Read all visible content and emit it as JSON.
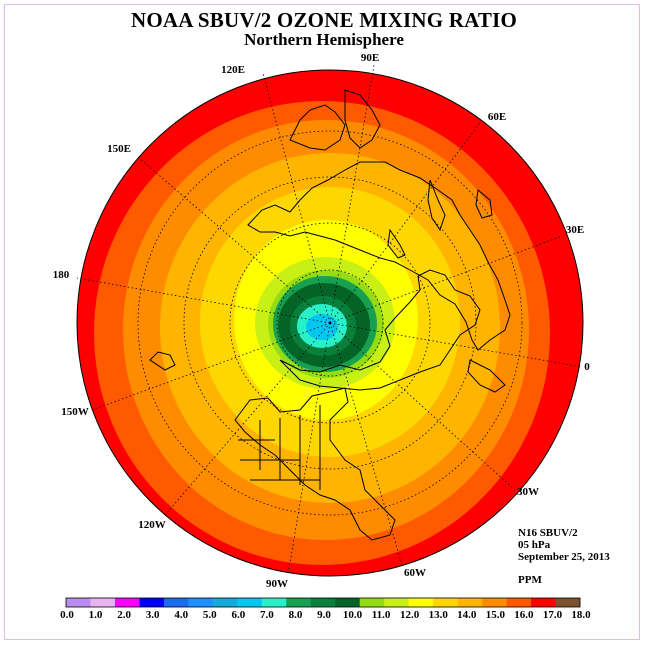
{
  "title": "NOAA SBUV/2 OZONE MIXING RATIO",
  "subtitle": "Northern Hemisphere",
  "info": {
    "satellite": "N16 SBUV/2",
    "level": "05 hPa",
    "date": "September 25, 2013",
    "units": "PPM"
  },
  "longitude_labels": [
    "120E",
    "90E",
    "60E",
    "150E",
    "30E",
    "180",
    "0",
    "150W",
    "30W",
    "120W",
    "60W",
    "90W"
  ],
  "colorbar": {
    "ticks": [
      "0.0",
      "1.0",
      "2.0",
      "3.0",
      "4.0",
      "5.0",
      "6.0",
      "7.0",
      "8.0",
      "9.0",
      "10.0",
      "11.0",
      "12.0",
      "13.0",
      "14.0",
      "15.0",
      "16.0",
      "17.0",
      "18.0"
    ],
    "colors": [
      "#b98cf0",
      "#e8b4f0",
      "#ff00ff",
      "#0000ff",
      "#1c6cf0",
      "#1e90ff",
      "#14aadc",
      "#00c8f0",
      "#28f0c8",
      "#16a050",
      "#08803c",
      "#046428",
      "#96dc14",
      "#c8f014",
      "#ffff00",
      "#ffd700",
      "#ffb400",
      "#ff8c00",
      "#ff5a00",
      "#ff0000",
      "#7a5230"
    ]
  },
  "field_colors": {
    "ring_18": "#ff0000",
    "ring_17": "#ff5a00",
    "ring_16": "#ff8c00",
    "ring_15": "#ffb400",
    "ring_14": "#ffd700",
    "ring_13": "#ffff00",
    "ring_12": "#c8f014",
    "ring_11": "#96dc14",
    "ring_10": "#16a050",
    "ring_9": "#046428",
    "ring_8": "#08803c",
    "core_low": "#28f0c8",
    "core_min": "#00c8f0"
  }
}
